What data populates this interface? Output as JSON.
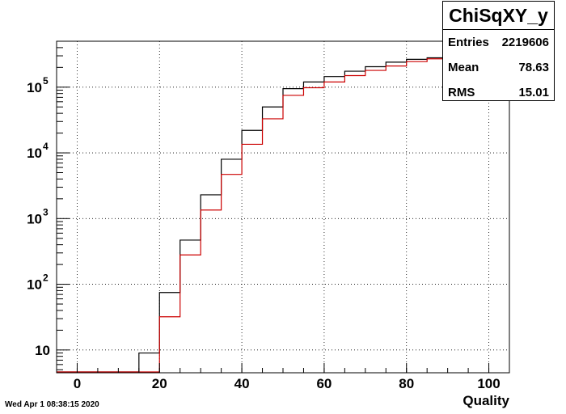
{
  "timestamp": "Wed Apr  1 08:38:15 2020",
  "stats": {
    "title": "ChiSqXY_y",
    "rows": [
      {
        "label": "Entries",
        "value": "2219606"
      },
      {
        "label": "Mean",
        "value": "78.63"
      },
      {
        "label": "RMS",
        "value": "15.01"
      }
    ]
  },
  "chart_data": {
    "type": "line",
    "title": "",
    "xlabel": "Quality",
    "ylabel": "",
    "xlim": [
      -5,
      105
    ],
    "ylim": [
      4.5,
      500000
    ],
    "yscale": "log",
    "grid": true,
    "x_ticks": [
      0,
      20,
      40,
      60,
      80,
      100
    ],
    "y_ticks": [
      {
        "value": 10,
        "label": "10"
      },
      {
        "value": 100,
        "label": "10",
        "exp": "2"
      },
      {
        "value": 1000,
        "label": "10",
        "exp": "3"
      },
      {
        "value": 10000,
        "label": "10",
        "exp": "4"
      },
      {
        "value": 100000,
        "label": "10",
        "exp": "5"
      }
    ],
    "bin_edges": [
      -5,
      0,
      5,
      10,
      15,
      20,
      25,
      30,
      35,
      40,
      45,
      50,
      55,
      60,
      65,
      70,
      75,
      80,
      85,
      90,
      95,
      100,
      105
    ],
    "series": [
      {
        "color": "#000000",
        "values": [
          0,
          0,
          0,
          0,
          9,
          75,
          470,
          2300,
          8000,
          22000,
          50000,
          95000,
          120000,
          145000,
          175000,
          205000,
          240000,
          265000,
          280000,
          270000,
          240000,
          130000
        ]
      },
      {
        "color": "#cc0000",
        "values": [
          0,
          0,
          0,
          0,
          0,
          32,
          280,
          1350,
          4700,
          13500,
          33000,
          75000,
          98000,
          120000,
          150000,
          180000,
          210000,
          245000,
          270000,
          265000,
          230000,
          125000
        ]
      }
    ]
  }
}
